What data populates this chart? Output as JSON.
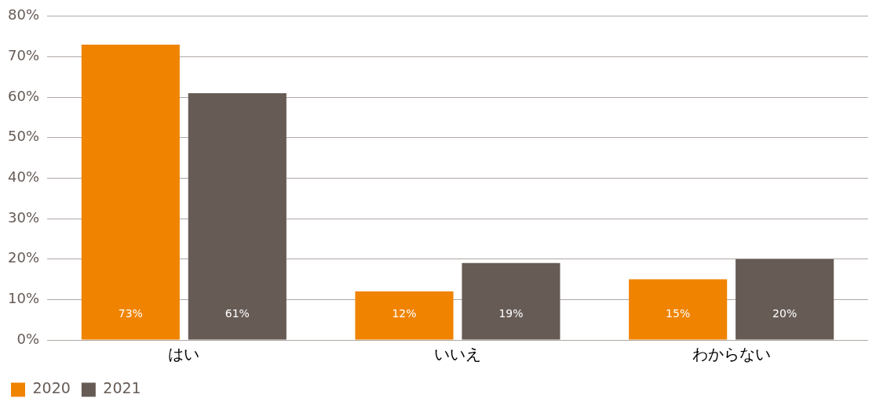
{
  "chart_data": {
    "type": "bar",
    "categories": [
      "はい",
      "いいえ",
      "わからない"
    ],
    "series": [
      {
        "name": "2020",
        "color": "#f08300",
        "values": [
          73,
          12,
          15
        ],
        "value_labels": [
          "73%",
          "12%",
          "15%"
        ]
      },
      {
        "name": "2021",
        "color": "#665b55",
        "values": [
          61,
          19,
          20
        ],
        "value_labels": [
          "61%",
          "19%",
          "20%"
        ]
      }
    ],
    "ylim": [
      0,
      80
    ],
    "yticks": [
      {
        "value": 0,
        "label": "0%"
      },
      {
        "value": 10,
        "label": "10%"
      },
      {
        "value": 20,
        "label": "20%"
      },
      {
        "value": 30,
        "label": "30%"
      },
      {
        "value": 40,
        "label": "40%"
      },
      {
        "value": 50,
        "label": "50%"
      },
      {
        "value": 60,
        "label": "60%"
      },
      {
        "value": 70,
        "label": "70%"
      },
      {
        "value": 80,
        "label": "80%"
      }
    ],
    "grid": "y",
    "legend": "bottom left"
  }
}
